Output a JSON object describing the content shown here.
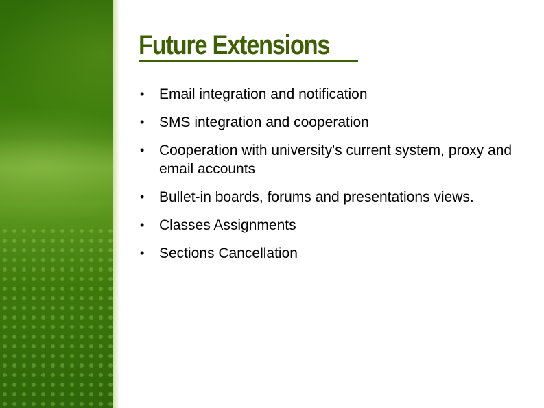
{
  "slide": {
    "title": "Future Extensions",
    "bullets": [
      "Email integration and notification",
      "SMS integration and cooperation",
      "Cooperation with university's current system, proxy and email accounts",
      "Bullet-in boards, forums and presentations views.",
      "Classes Assignments",
      "Sections Cancellation"
    ]
  },
  "colors": {
    "title": "#3f5f05",
    "band_dark": "#2f6b08",
    "band_light": "#5f9a1f",
    "text": "#000000",
    "background": "#ffffff"
  }
}
